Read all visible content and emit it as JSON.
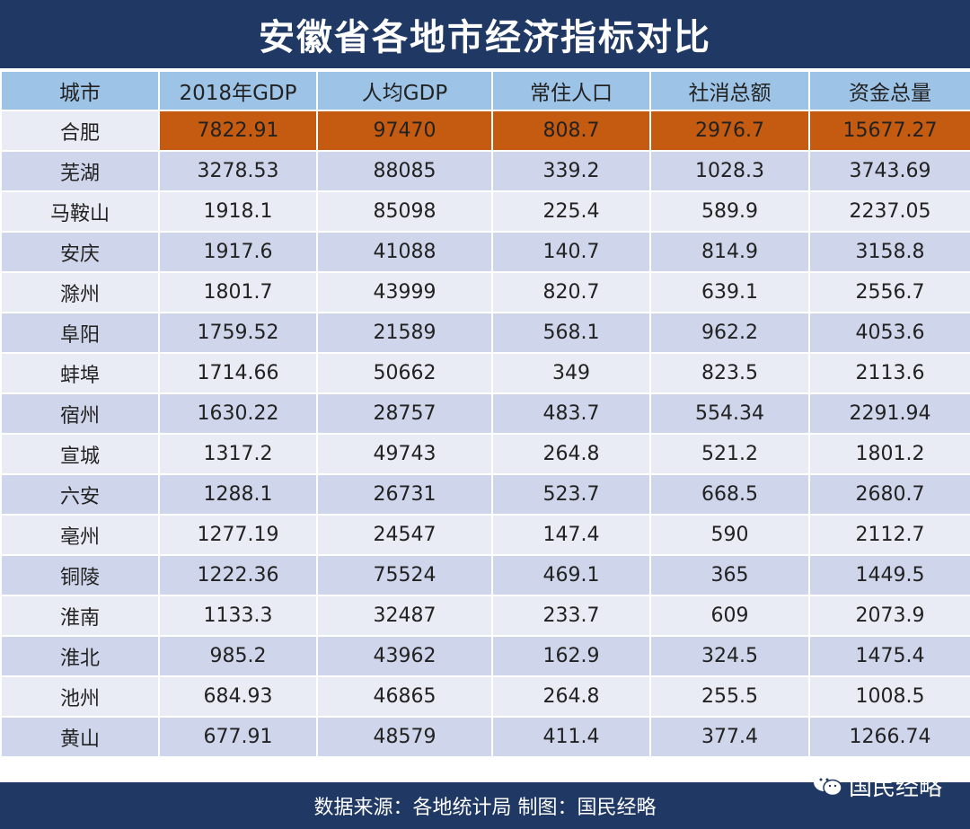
{
  "header": {
    "title": "安徽省各地市经济指标对比"
  },
  "table": {
    "columns": [
      "城市",
      "2018年GDP",
      "人均GDP",
      "常住人口",
      "社消总额",
      "资金总量"
    ],
    "rows": [
      [
        "合肥",
        "7822.91",
        "97470",
        "808.7",
        "2976.7",
        "15677.27"
      ],
      [
        "芜湖",
        "3278.53",
        "88085",
        "339.2",
        "1028.3",
        "3743.69"
      ],
      [
        "马鞍山",
        "1918.1",
        "85098",
        "225.4",
        "589.9",
        "2237.05"
      ],
      [
        "安庆",
        "1917.6",
        "41088",
        "140.7",
        "814.9",
        "3158.8"
      ],
      [
        "滁州",
        "1801.7",
        "43999",
        "820.7",
        "639.1",
        "2556.7"
      ],
      [
        "阜阳",
        "1759.52",
        "21589",
        "568.1",
        "962.2",
        "4053.6"
      ],
      [
        "蚌埠",
        "1714.66",
        "50662",
        "349",
        "823.5",
        "2113.6"
      ],
      [
        "宿州",
        "1630.22",
        "28757",
        "483.7",
        "554.34",
        "2291.94"
      ],
      [
        "宣城",
        "1317.2",
        "49743",
        "264.8",
        "521.2",
        "1801.2"
      ],
      [
        "六安",
        "1288.1",
        "26731",
        "523.7",
        "668.5",
        "2680.7"
      ],
      [
        "亳州",
        "1277.19",
        "24547",
        "147.4",
        "590",
        "2112.7"
      ],
      [
        "铜陵",
        "1222.36",
        "75524",
        "469.1",
        "365",
        "1449.5"
      ],
      [
        "淮南",
        "1133.3",
        "32487",
        "233.7",
        "609",
        "2073.9"
      ],
      [
        "淮北",
        "985.2",
        "43962",
        "162.9",
        "324.5",
        "1475.4"
      ],
      [
        "池州",
        "684.93",
        "46865",
        "264.8",
        "255.5",
        "1008.5"
      ],
      [
        "黄山",
        "677.91",
        "48579",
        "411.4",
        "377.4",
        "1266.74"
      ]
    ]
  },
  "footer": {
    "source": "数据来源：各地统计局 制图：国民经略",
    "watermark": "国民经略"
  }
}
